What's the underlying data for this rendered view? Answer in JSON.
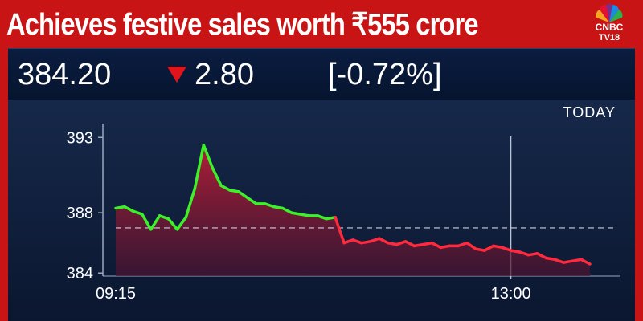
{
  "headline": "Achieves festive sales worth ₹555 crore",
  "logo": {
    "line1": "CNBC",
    "line2": "TV18"
  },
  "ticker": {
    "price": "384.20",
    "change": "2.80",
    "percent": "[-0.72%]",
    "direction": "down"
  },
  "colors": {
    "up": "#3cf02a",
    "down": "#ff2a3d",
    "banner": "#c81414"
  },
  "chart_data": {
    "type": "line",
    "period_label": "TODAY",
    "previous_close": 387.0,
    "ylim": [
      383.8,
      393.6
    ],
    "yticks": [
      393,
      388,
      384
    ],
    "ytick_labels": [
      "393",
      "388",
      "384"
    ],
    "xticks": [
      "09:15",
      "13:00"
    ],
    "x": [
      "09:15",
      "09:20",
      "09:25",
      "09:30",
      "09:35",
      "09:40",
      "09:45",
      "09:50",
      "09:55",
      "10:00",
      "10:05",
      "10:10",
      "10:15",
      "10:20",
      "10:25",
      "10:30",
      "10:35",
      "10:40",
      "10:45",
      "10:50",
      "10:55",
      "11:00",
      "11:05",
      "11:10",
      "11:15",
      "11:20",
      "11:25",
      "11:30",
      "11:35",
      "11:40",
      "11:45",
      "11:50",
      "11:55",
      "12:00",
      "12:05",
      "12:10",
      "12:15",
      "12:20",
      "12:25",
      "12:30",
      "12:35",
      "12:40",
      "12:45",
      "12:50",
      "12:55",
      "13:00",
      "13:05",
      "13:10",
      "13:15",
      "13:20",
      "13:25",
      "13:30",
      "13:35",
      "13:40",
      "13:45"
    ],
    "values": [
      388.3,
      388.4,
      388.1,
      387.9,
      386.9,
      387.8,
      387.6,
      386.9,
      387.7,
      389.6,
      392.5,
      391.0,
      389.8,
      389.5,
      389.4,
      389.0,
      388.6,
      388.6,
      388.4,
      388.3,
      388.0,
      387.9,
      387.8,
      387.8,
      387.6,
      387.7,
      386.0,
      386.2,
      386.0,
      386.1,
      386.3,
      386.0,
      385.9,
      386.1,
      385.8,
      385.9,
      386.0,
      385.7,
      385.8,
      385.8,
      386.0,
      385.6,
      385.5,
      385.8,
      385.7,
      385.5,
      385.4,
      385.2,
      385.3,
      385.0,
      384.9,
      384.7,
      384.8,
      384.9,
      384.6
    ]
  }
}
